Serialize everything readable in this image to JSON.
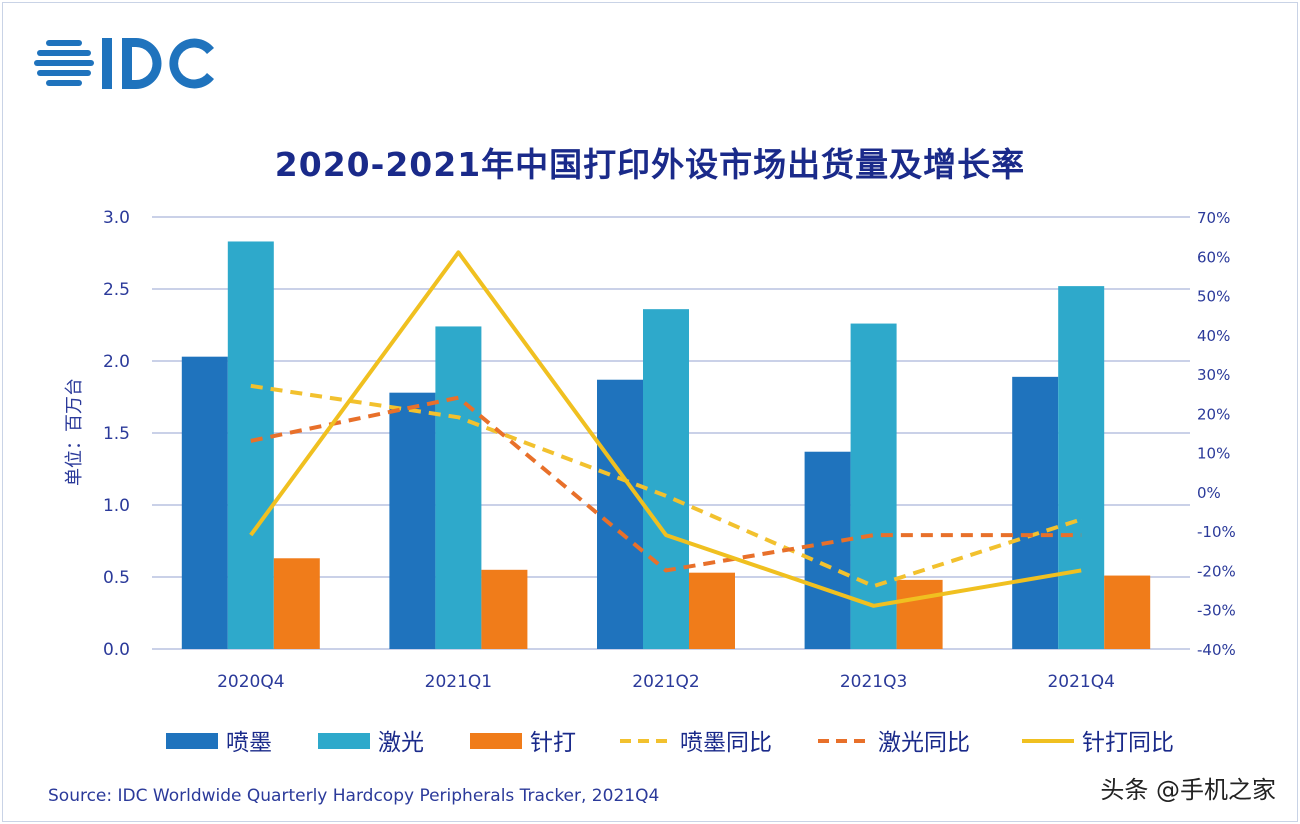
{
  "logo_text": "IDC",
  "colors": {
    "inkjet": "#1f73bd",
    "laser": "#2ea9cb",
    "dot": "#f07c1a",
    "inkjet_yoy": "#f2c12e",
    "laser_yoy": "#e8702a",
    "dot_yoy": "#f0c020",
    "axis_text": "#2b3a9a",
    "grid": "#b8c2e0"
  },
  "source": "Source:  IDC Worldwide Quarterly Hardcopy Peripherals Tracker, 2021Q4",
  "watermark": "头条 @手机之家",
  "chart_data": {
    "type": "bar+line",
    "title": "2020-2021年中国打印外设市场出货量及增长率",
    "ylabel": "单位：百万台",
    "xlabel": "",
    "categories": [
      "2020Q4",
      "2021Q1",
      "2021Q2",
      "2021Q3",
      "2021Q4"
    ],
    "ylim": [
      0,
      3.0
    ],
    "yticks": [
      "0.0",
      "0.5",
      "1.0",
      "1.5",
      "2.0",
      "2.5",
      "3.0"
    ],
    "y2lim": [
      -40,
      70
    ],
    "y2ticks": [
      "-40%",
      "-30%",
      "-20%",
      "-10%",
      "0%",
      "10%",
      "20%",
      "30%",
      "40%",
      "50%",
      "60%",
      "70%"
    ],
    "grid": true,
    "legend_position": "bottom",
    "bar_series": [
      {
        "name": "喷墨",
        "values": [
          2.03,
          1.78,
          1.87,
          1.37,
          1.89
        ]
      },
      {
        "name": "激光",
        "values": [
          2.83,
          2.24,
          2.36,
          2.26,
          2.52
        ]
      },
      {
        "name": "针打",
        "values": [
          0.63,
          0.55,
          0.53,
          0.48,
          0.51
        ]
      }
    ],
    "line_series": [
      {
        "name": "喷墨同比",
        "style": "dashed",
        "values": [
          27,
          19,
          -1,
          -24,
          -7
        ]
      },
      {
        "name": "激光同比",
        "style": "dashed",
        "values": [
          13,
          24,
          -20,
          -11,
          -11
        ]
      },
      {
        "name": "针打同比",
        "style": "solid",
        "values": [
          -11,
          61,
          -11,
          -29,
          -20
        ]
      }
    ]
  }
}
